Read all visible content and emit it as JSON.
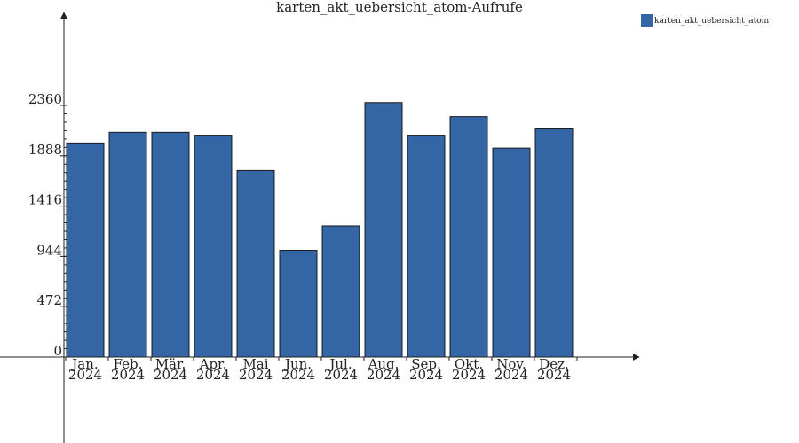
{
  "chart_data": {
    "type": "bar",
    "title": "karten_akt_uebersicht_atom-Aufrufe",
    "xlabel": "",
    "ylabel": "",
    "categories": [
      [
        "Jan.",
        "2024"
      ],
      [
        "Feb.",
        "2024"
      ],
      [
        "Mär.",
        "2024"
      ],
      [
        "Apr.",
        "2024"
      ],
      [
        "Mai",
        "2024"
      ],
      [
        "Jun.",
        "2024"
      ],
      [
        "Jul.",
        "2024"
      ],
      [
        "Aug.",
        "2024"
      ],
      [
        "Sep.",
        "2024"
      ],
      [
        "Okt.",
        "2024"
      ],
      [
        "Nov.",
        "2024"
      ],
      [
        "Dez.",
        "2024"
      ]
    ],
    "series": [
      {
        "name": "karten_akt_uebersicht_atom",
        "color": "#3465a4",
        "values": [
          2008,
          2108,
          2108,
          2081,
          1750,
          1001,
          1230,
          2387,
          2081,
          2255,
          1960,
          2140
        ]
      }
    ],
    "yticks": [
      "0",
      "472",
      "944",
      "1416",
      "1888",
      "2360"
    ],
    "ylim": [
      0,
      2360
    ],
    "grid": false,
    "legend_position": "top-right"
  }
}
